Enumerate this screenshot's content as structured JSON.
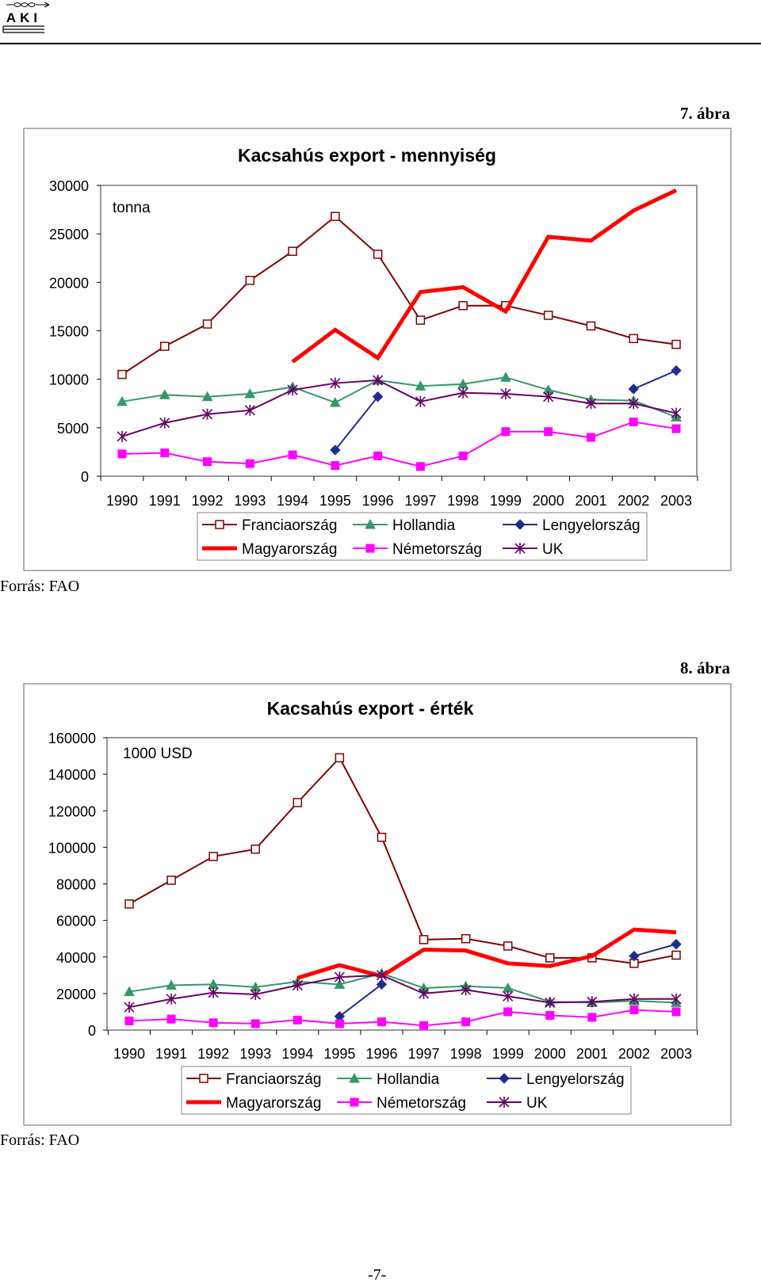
{
  "header": {
    "logo_text": "AKI"
  },
  "figures": [
    {
      "label": "7. ábra",
      "source": "Forrás: FAO"
    },
    {
      "label": "8. ábra",
      "source": "Forrás: FAO"
    }
  ],
  "page_number": "-7-",
  "chart_data": [
    {
      "type": "line",
      "title": "Kacsahús export - mennyiség",
      "unit": "tonna",
      "xlabel": "",
      "ylabel": "",
      "ylim": [
        0,
        30000
      ],
      "yticks": [
        0,
        5000,
        10000,
        15000,
        20000,
        25000,
        30000
      ],
      "grid": false,
      "legend_position": "bottom",
      "x": [
        "1990",
        "1991",
        "1992",
        "1993",
        "1994",
        "1995",
        "1996",
        "1997",
        "1998",
        "1999",
        "2000",
        "2001",
        "2002",
        "2003"
      ],
      "series": [
        {
          "name": "Franciaország",
          "color": "#800000",
          "marker": "square-open",
          "values": [
            10500,
            13400,
            15700,
            20200,
            23200,
            26800,
            22900,
            16100,
            17600,
            17600,
            16600,
            15500,
            14200,
            13600
          ]
        },
        {
          "name": "Hollandia",
          "color": "#339966",
          "marker": "triangle",
          "values": [
            7700,
            8400,
            8200,
            8500,
            9200,
            7600,
            9900,
            9300,
            9500,
            10200,
            8900,
            7900,
            7800,
            6100
          ]
        },
        {
          "name": "Lengyelország",
          "color": "#1f2e8c",
          "marker": "diamond",
          "values": [
            null,
            null,
            null,
            null,
            null,
            2700,
            8200,
            null,
            null,
            null,
            null,
            null,
            9000,
            10900
          ]
        },
        {
          "name": "Magyarország",
          "color": "#ff0000",
          "marker": "none",
          "thick": true,
          "values": [
            null,
            null,
            null,
            null,
            11800,
            15100,
            12200,
            19000,
            19500,
            17000,
            24700,
            24300,
            27400,
            29500
          ]
        },
        {
          "name": "Németország",
          "color": "#ff00ff",
          "marker": "square",
          "values": [
            2300,
            2400,
            1500,
            1300,
            2200,
            1100,
            2100,
            1000,
            2100,
            4600,
            4600,
            4000,
            5600,
            4900
          ]
        },
        {
          "name": "UK",
          "color": "#660066",
          "marker": "star",
          "values": [
            4100,
            5500,
            6400,
            6800,
            8900,
            9600,
            9900,
            7700,
            8600,
            8500,
            8200,
            7500,
            7500,
            6500
          ]
        }
      ]
    },
    {
      "type": "line",
      "title": "Kacsahús export - érték",
      "unit": "1000 USD",
      "xlabel": "",
      "ylabel": "",
      "ylim": [
        0,
        160000
      ],
      "yticks": [
        0,
        20000,
        40000,
        60000,
        80000,
        100000,
        120000,
        140000,
        160000
      ],
      "grid": false,
      "legend_position": "bottom",
      "x": [
        "1990",
        "1991",
        "1992",
        "1993",
        "1994",
        "1995",
        "1996",
        "1997",
        "1998",
        "1999",
        "2000",
        "2001",
        "2002",
        "2003"
      ],
      "series": [
        {
          "name": "Franciaország",
          "color": "#800000",
          "marker": "square-open",
          "values": [
            69000,
            82000,
            95000,
            99000,
            124500,
            149000,
            105500,
            49500,
            50000,
            46000,
            39500,
            39500,
            36500,
            41000
          ]
        },
        {
          "name": "Hollandia",
          "color": "#339966",
          "marker": "triangle",
          "values": [
            21000,
            24500,
            25000,
            23500,
            26500,
            25000,
            31000,
            23000,
            24000,
            23000,
            15500,
            15000,
            16000,
            15000
          ]
        },
        {
          "name": "Lengyelország",
          "color": "#1f2e8c",
          "marker": "diamond",
          "values": [
            null,
            null,
            null,
            null,
            null,
            7500,
            25000,
            null,
            null,
            null,
            null,
            null,
            40500,
            47000
          ]
        },
        {
          "name": "Magyarország",
          "color": "#ff0000",
          "marker": "none",
          "thick": true,
          "values": [
            null,
            null,
            null,
            null,
            28500,
            35500,
            29500,
            44000,
            43500,
            36500,
            35000,
            40500,
            55000,
            53500
          ]
        },
        {
          "name": "Németország",
          "color": "#ff00ff",
          "marker": "square",
          "values": [
            5000,
            6000,
            4000,
            3500,
            5500,
            3500,
            4500,
            2500,
            4500,
            10000,
            8000,
            7000,
            11000,
            10000
          ]
        },
        {
          "name": "UK",
          "color": "#660066",
          "marker": "star",
          "values": [
            12500,
            17000,
            20500,
            19500,
            24500,
            29000,
            30000,
            20000,
            22000,
            18500,
            15000,
            15500,
            17000,
            17000
          ]
        }
      ]
    }
  ]
}
